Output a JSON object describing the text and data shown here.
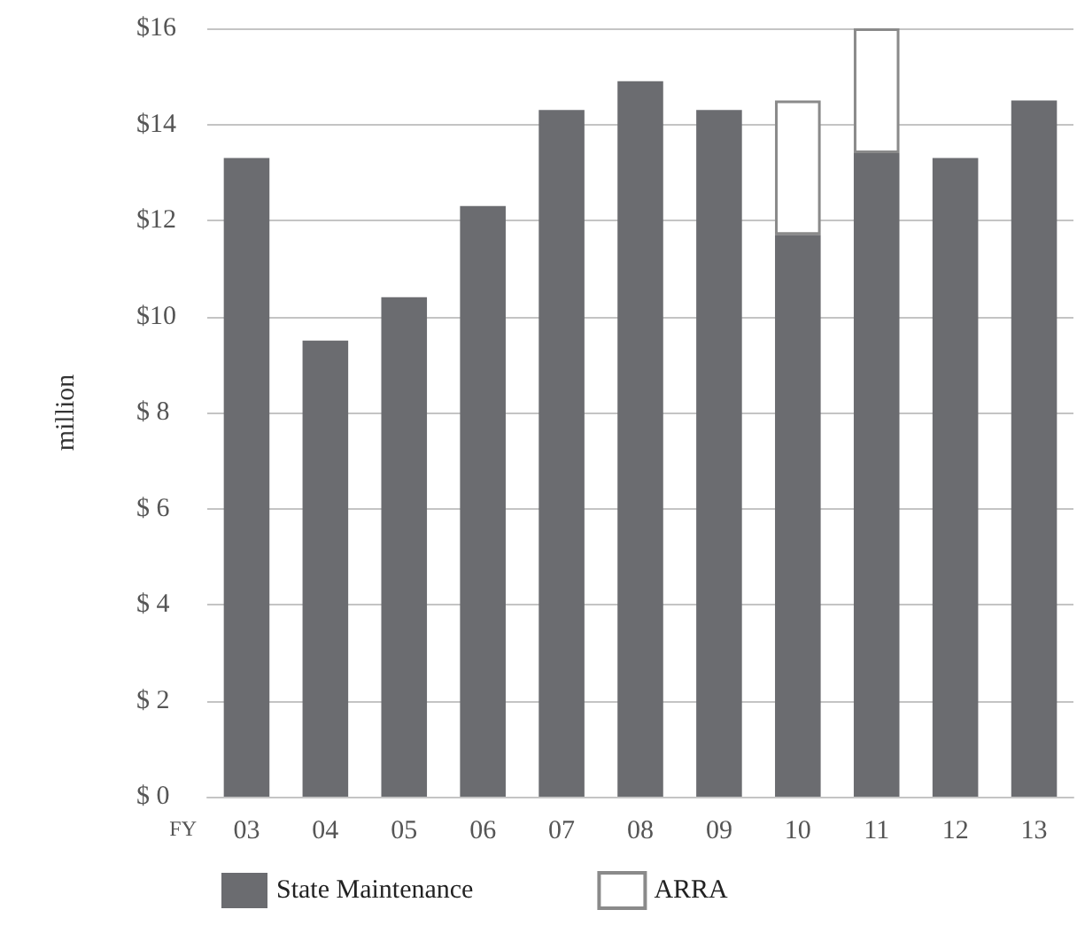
{
  "chart_data": {
    "type": "bar",
    "stacked": true,
    "xlabel": "FY",
    "ylabel": "million",
    "categories": [
      "03",
      "04",
      "05",
      "06",
      "07",
      "08",
      "09",
      "10",
      "11",
      "12",
      "13"
    ],
    "series": [
      {
        "name": "State Maintenance",
        "color": "#6b6c70",
        "values": [
          13.3,
          9.5,
          10.4,
          12.3,
          14.3,
          14.9,
          14.3,
          11.7,
          13.4,
          13.3,
          14.5
        ]
      },
      {
        "name": "ARRA",
        "color": "#ffffff",
        "values": [
          null,
          null,
          null,
          null,
          null,
          null,
          null,
          2.8,
          2.6,
          null,
          null
        ]
      }
    ],
    "ylim": [
      0,
      16
    ],
    "yticks": [
      {
        "value": 0,
        "label": "$ 0"
      },
      {
        "value": 2,
        "label": "$ 2"
      },
      {
        "value": 4,
        "label": "$ 4"
      },
      {
        "value": 6,
        "label": "$ 6"
      },
      {
        "value": 8,
        "label": "$ 8"
      },
      {
        "value": 10,
        "label": "$10"
      },
      {
        "value": 12,
        "label": "$12"
      },
      {
        "value": 14,
        "label": "$14"
      },
      {
        "value": 16,
        "label": "$16"
      }
    ],
    "grid": "y",
    "legend": "bottom"
  }
}
